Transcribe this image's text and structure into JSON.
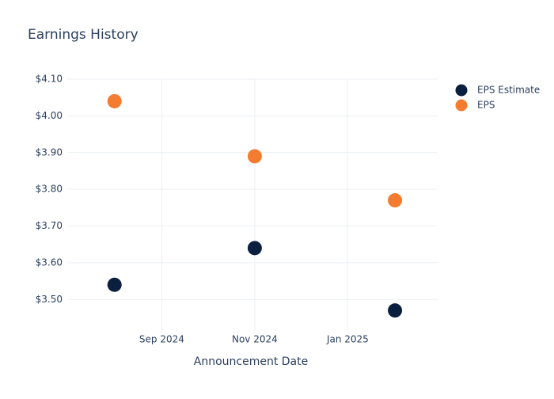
{
  "chart_data": {
    "type": "scatter",
    "title": "Earnings History",
    "x_label": "Announcement Date",
    "x": [
      "2024-08",
      "2024-11",
      "2025-02"
    ],
    "series": [
      {
        "name": "EPS Estimate",
        "color": "#0b1f3f",
        "values": [
          3.54,
          3.64,
          3.47
        ]
      },
      {
        "name": "EPS",
        "color": "#f47c30",
        "values": [
          4.04,
          3.89,
          3.77
        ]
      }
    ],
    "xlim": [
      "2024-07",
      "2025-03"
    ],
    "xticks": [
      {
        "value": "2024-09",
        "label": "Sep 2024"
      },
      {
        "value": "2024-11",
        "label": "Nov 2024"
      },
      {
        "value": "2025-01",
        "label": "Jan 2025"
      }
    ],
    "ylim": [
      3.41,
      4.1
    ],
    "yticks": [
      {
        "value": 3.5,
        "label": "$3.50"
      },
      {
        "value": 3.6,
        "label": "$3.60"
      },
      {
        "value": 3.7,
        "label": "$3.70"
      },
      {
        "value": 3.8,
        "label": "$3.80"
      },
      {
        "value": 3.9,
        "label": "$3.90"
      },
      {
        "value": 4.0,
        "label": "$4.00"
      },
      {
        "value": 4.1,
        "label": "$4.10"
      }
    ],
    "grid": true,
    "legend": "top-right"
  }
}
